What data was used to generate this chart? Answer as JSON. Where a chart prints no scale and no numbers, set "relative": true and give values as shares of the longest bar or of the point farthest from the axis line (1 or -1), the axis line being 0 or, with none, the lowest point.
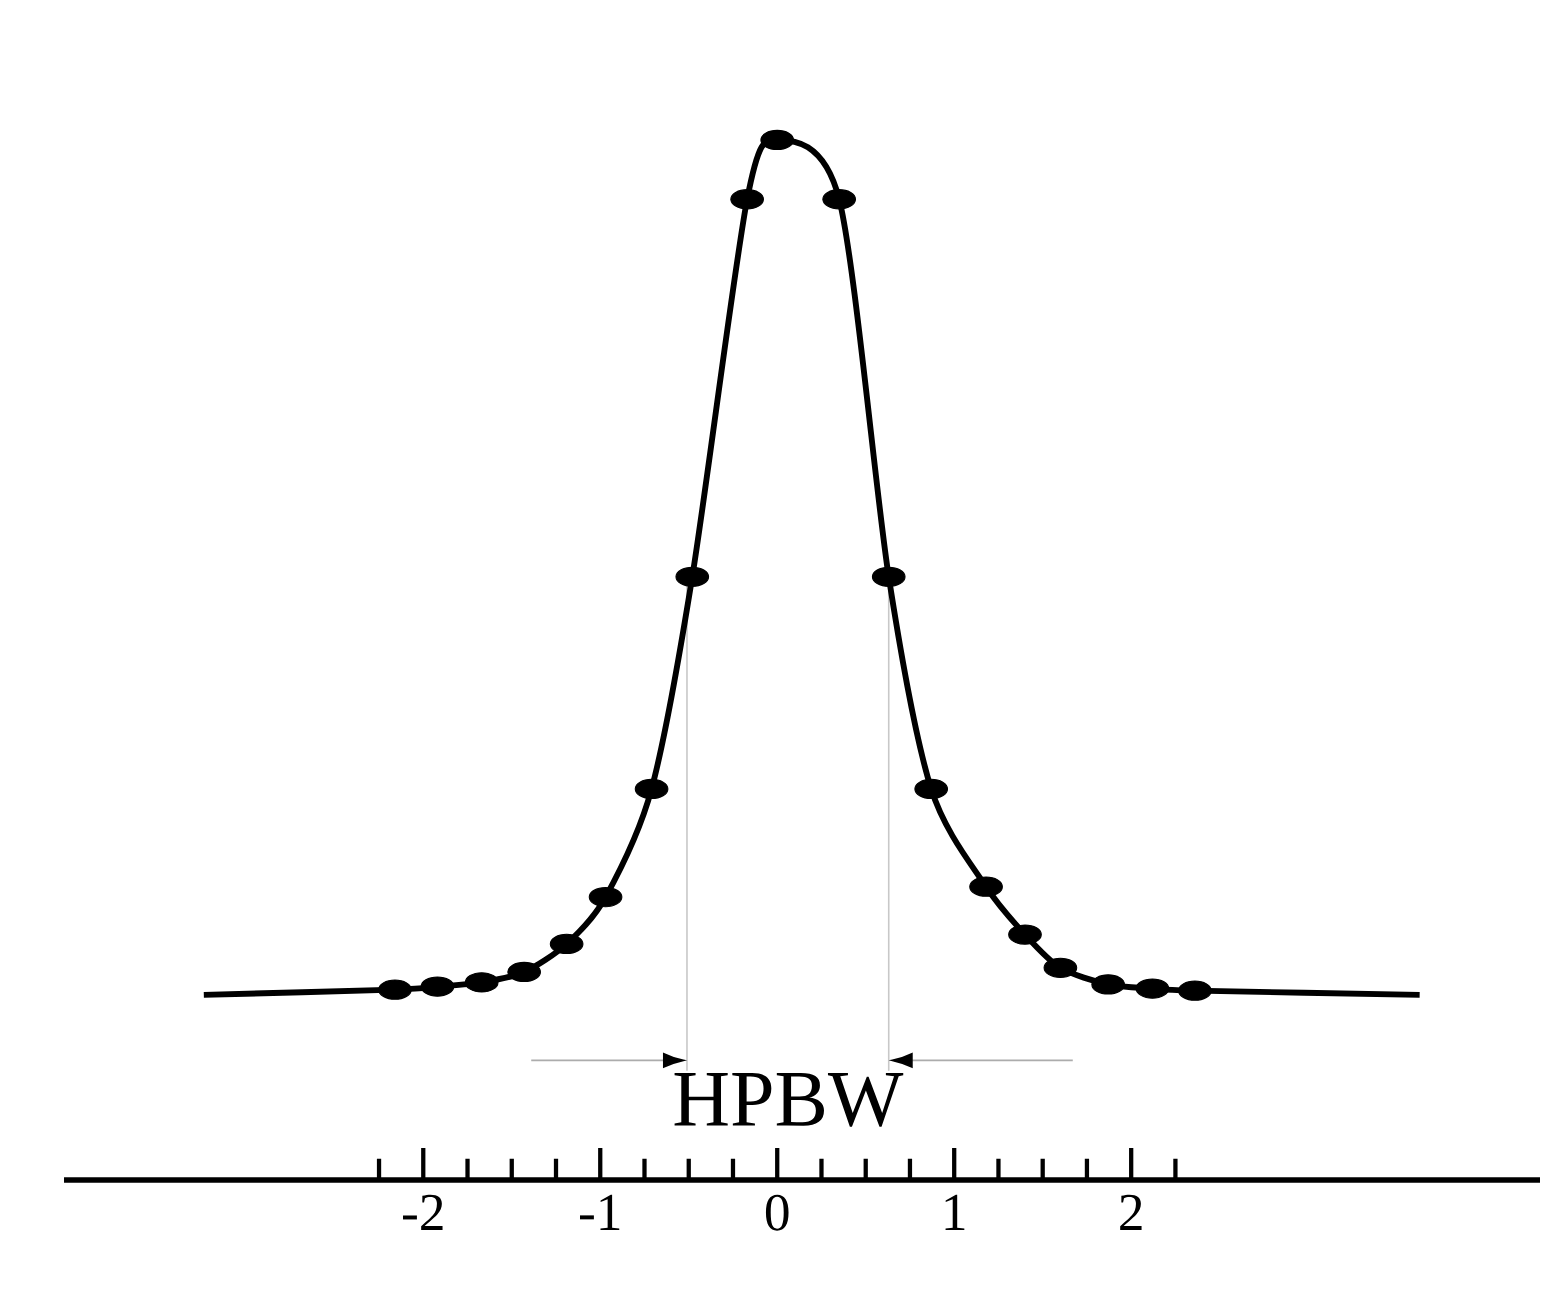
{
  "chart_data": {
    "type": "line",
    "relative": true,
    "xlim": [
      -4.03,
      4.31
    ],
    "xticks": [
      {
        "value": -2.25,
        "label": null
      },
      {
        "value": -2,
        "label": "-2"
      },
      {
        "value": -1.75,
        "label": null
      },
      {
        "value": -1.5,
        "label": null
      },
      {
        "value": -1.25,
        "label": null
      },
      {
        "value": -1,
        "label": "-1"
      },
      {
        "value": -0.75,
        "label": null
      },
      {
        "value": -0.5,
        "label": null
      },
      {
        "value": -0.25,
        "label": null
      },
      {
        "value": 0,
        "label": "0"
      },
      {
        "value": 0.25,
        "label": null
      },
      {
        "value": 0.5,
        "label": null
      },
      {
        "value": 0.75,
        "label": null
      },
      {
        "value": 1,
        "label": "1"
      },
      {
        "value": 1.25,
        "label": null
      },
      {
        "value": 1.5,
        "label": null
      },
      {
        "value": 1.75,
        "label": null
      },
      {
        "value": 2,
        "label": "2"
      },
      {
        "value": 2.25,
        "label": null
      }
    ],
    "series": [
      {
        "color": "#000000",
        "marker": "none",
        "x": [
          -3.24,
          -2.16,
          -1.92,
          -1.67,
          -1.43,
          -1.19,
          -0.97,
          -0.71,
          -0.48,
          -0.17,
          0,
          0.35,
          0.63,
          0.87,
          1.18,
          1.4,
          1.6,
          1.87,
          2.12,
          2.36,
          3.63
        ],
        "values": [
          0.178,
          0.183,
          0.186,
          0.19,
          0.2,
          0.227,
          0.272,
          0.376,
          0.58,
          0.943,
          1,
          0.943,
          0.58,
          0.376,
          0.282,
          0.236,
          0.204,
          0.188,
          0.184,
          0.182,
          0.178
        ]
      },
      {
        "type": "scatter",
        "color": "#000000",
        "marker": "circle",
        "x": [
          -2.16,
          -1.92,
          -1.67,
          -1.43,
          -1.19,
          -0.97,
          -0.71,
          -0.48,
          -0.17,
          0,
          0.35,
          0.63,
          0.87,
          1.18,
          1.4,
          1.6,
          1.87,
          2.12,
          2.36
        ],
        "values": [
          0.183,
          0.186,
          0.19,
          0.2,
          0.227,
          0.272,
          0.376,
          0.58,
          0.943,
          1,
          0.943,
          0.58,
          0.376,
          0.282,
          0.236,
          0.204,
          0.188,
          0.184,
          0.182
        ]
      }
    ],
    "ref_lines": [
      {
        "axis": "x",
        "value": -0.51,
        "color": "#c8c8c8"
      },
      {
        "axis": "x",
        "value": 0.63,
        "color": "#c8c8c8"
      }
    ],
    "annotations": [
      "HPBW"
    ],
    "grid": false,
    "line_style": "solid"
  }
}
